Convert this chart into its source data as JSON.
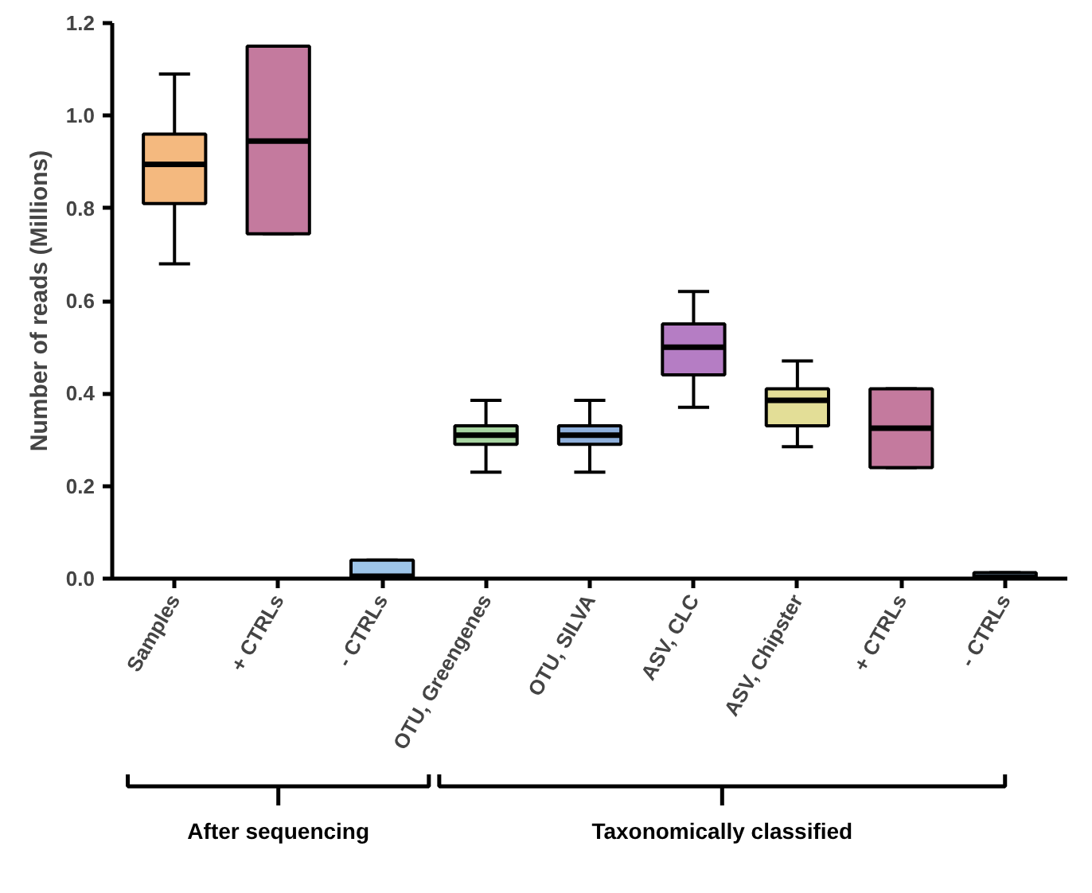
{
  "chart_data": {
    "type": "box",
    "ylabel": "Number of reads (Millions)",
    "categories": [
      "Samples",
      "+ CTRLs",
      "- CTRLs",
      "OTU, Greengenes",
      "OTU, SILVA",
      "ASV, CLC",
      "ASV, Chipster",
      "+ CTRLs",
      "- CTRLs"
    ],
    "colors": [
      "#f4b97f",
      "#c47a9e",
      "#9ec5e8",
      "#a8d5a2",
      "#8fb0dc",
      "#b57dc4",
      "#e3de97",
      "#c47a9e",
      "#9ec5e8"
    ],
    "boxes": [
      {
        "low": 0.68,
        "q1": 0.81,
        "median": 0.895,
        "q3": 0.96,
        "high": 1.09
      },
      {
        "low": 0.745,
        "q1": 0.745,
        "median": 0.945,
        "q3": 1.15,
        "high": 1.15
      },
      {
        "low": 0.0,
        "q1": 0.0,
        "median": 0.005,
        "q3": 0.04,
        "high": 0.04
      },
      {
        "low": 0.23,
        "q1": 0.29,
        "median": 0.31,
        "q3": 0.33,
        "high": 0.385
      },
      {
        "low": 0.23,
        "q1": 0.29,
        "median": 0.31,
        "q3": 0.33,
        "high": 0.385
      },
      {
        "low": 0.37,
        "q1": 0.44,
        "median": 0.5,
        "q3": 0.55,
        "high": 0.62
      },
      {
        "low": 0.285,
        "q1": 0.33,
        "median": 0.385,
        "q3": 0.41,
        "high": 0.47
      },
      {
        "low": 0.24,
        "q1": 0.24,
        "median": 0.325,
        "q3": 0.41,
        "high": 0.41
      },
      {
        "low": 0.0,
        "q1": 0.0,
        "median": 0.003,
        "q3": 0.013,
        "high": 0.013
      }
    ],
    "ylim": [
      0,
      1.2
    ],
    "yticks": [
      {
        "value": 0,
        "label": "0.0"
      },
      0.2,
      0.4,
      0.6,
      0.8,
      {
        "value": 1,
        "label": "1.0"
      },
      1.2
    ],
    "grid": false,
    "annotations": [
      "After sequencing",
      "Taxonomically classified"
    ]
  }
}
